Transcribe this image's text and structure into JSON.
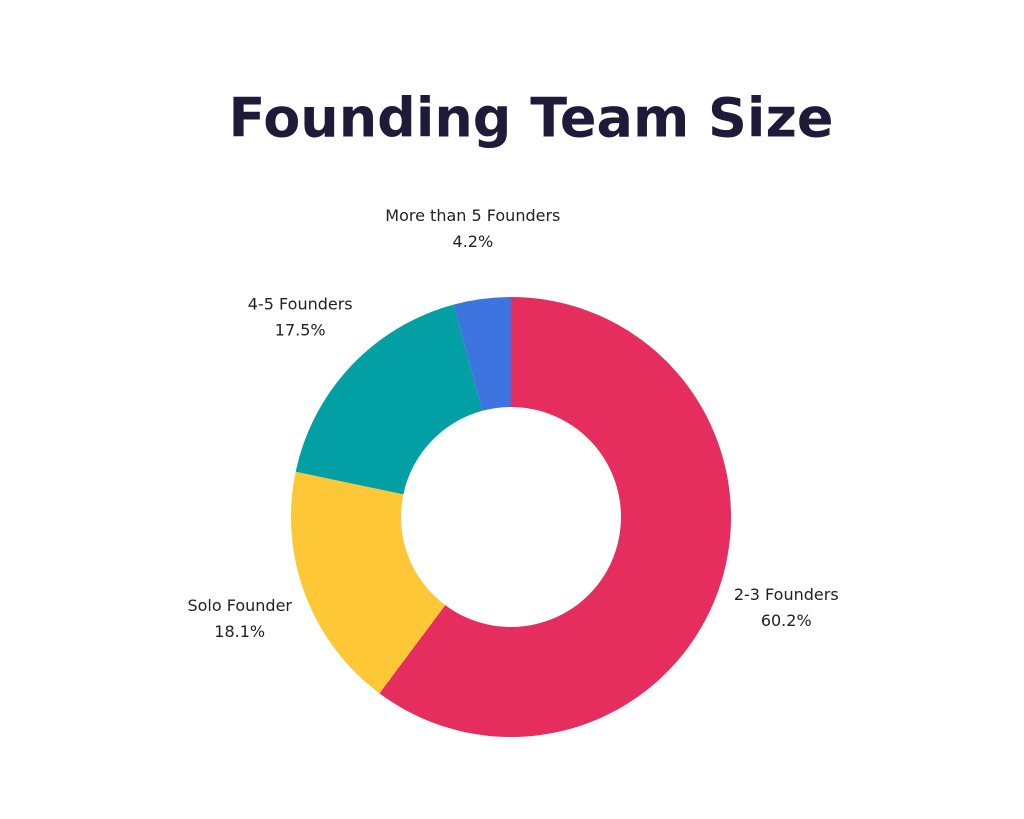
{
  "chart_data": {
    "type": "donut",
    "title": "Founding Team Size",
    "categories": [
      "2-3 Founders",
      "Solo Founder",
      "4-5 Founders",
      "More than 5 Founders"
    ],
    "values": [
      60.2,
      18.1,
      17.5,
      4.2
    ],
    "value_labels": [
      "60.2%",
      "18.1%",
      "17.5%",
      "4.2%"
    ],
    "colors": [
      "#e52d5e",
      "#fec735",
      "#02a0a4",
      "#3e74e0"
    ]
  }
}
